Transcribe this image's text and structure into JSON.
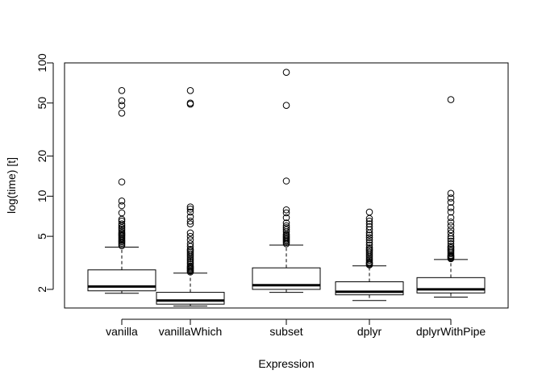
{
  "chart_data": {
    "type": "boxplot",
    "title": "",
    "xlabel": "Expression",
    "ylabel": "log(time) [t]",
    "y_scale": "log",
    "ylim": [
      1.45,
      100
    ],
    "y_ticks": [
      2,
      5,
      10,
      20,
      50,
      100
    ],
    "y_tick_labels": [
      "2",
      "5",
      "10",
      "20",
      "50",
      "100"
    ],
    "categories": [
      "vanilla",
      "vanillaWhich",
      "subset",
      "dplyr",
      "dplyrWithPipe"
    ],
    "boxes": [
      {
        "whisker_low": 1.87,
        "q1": 1.95,
        "median": 2.1,
        "q3": 2.8,
        "whisker_high": 4.15,
        "outliers": [
          4.25,
          4.35,
          4.45,
          4.55,
          4.65,
          4.75,
          4.85,
          4.95,
          5.05,
          5.15,
          5.25,
          5.35,
          5.5,
          5.65,
          5.8,
          6.0,
          6.2,
          6.5,
          6.7,
          7.5,
          8.5,
          9.2,
          12.8,
          42,
          48,
          52,
          62
        ]
      },
      {
        "whisker_low": 1.5,
        "q1": 1.55,
        "median": 1.65,
        "q3": 1.9,
        "whisker_high": 2.65,
        "outliers": [
          2.7,
          2.75,
          2.8,
          2.85,
          2.9,
          2.95,
          3.0,
          3.1,
          3.2,
          3.3,
          3.4,
          3.5,
          3.6,
          3.7,
          3.8,
          3.9,
          4.0,
          4.2,
          4.4,
          4.7,
          5.0,
          5.3,
          6.2,
          6.5,
          7.0,
          7.6,
          8.0,
          8.3,
          49,
          50,
          62
        ]
      },
      {
        "whisker_low": 1.9,
        "q1": 2.0,
        "median": 2.15,
        "q3": 2.9,
        "whisker_high": 4.3,
        "outliers": [
          4.4,
          4.5,
          4.6,
          4.7,
          4.8,
          4.9,
          5.0,
          5.1,
          5.2,
          5.4,
          5.6,
          5.8,
          6.0,
          6.3,
          6.9,
          7.5,
          7.9,
          13.0,
          48,
          85
        ]
      },
      {
        "whisker_low": 1.65,
        "q1": 1.82,
        "median": 1.92,
        "q3": 2.28,
        "whisker_high": 3.0,
        "outliers": [
          3.05,
          3.1,
          3.15,
          3.2,
          3.3,
          3.4,
          3.5,
          3.6,
          3.7,
          3.8,
          3.9,
          4.0,
          4.1,
          4.3,
          4.5,
          4.7,
          4.9,
          5.1,
          5.3,
          5.6,
          5.9,
          6.2,
          6.5,
          6.8,
          7.6
        ]
      },
      {
        "whisker_low": 1.75,
        "q1": 1.88,
        "median": 2.0,
        "q3": 2.45,
        "whisker_high": 3.35,
        "outliers": [
          3.4,
          3.45,
          3.5,
          3.55,
          3.6,
          3.7,
          3.8,
          3.9,
          4.0,
          4.1,
          4.2,
          4.4,
          4.6,
          4.8,
          5.0,
          5.3,
          5.6,
          6.0,
          6.4,
          6.9,
          7.6,
          8.2,
          9.0,
          9.7,
          10.5,
          53
        ]
      }
    ],
    "grid": false,
    "legend": "none"
  }
}
